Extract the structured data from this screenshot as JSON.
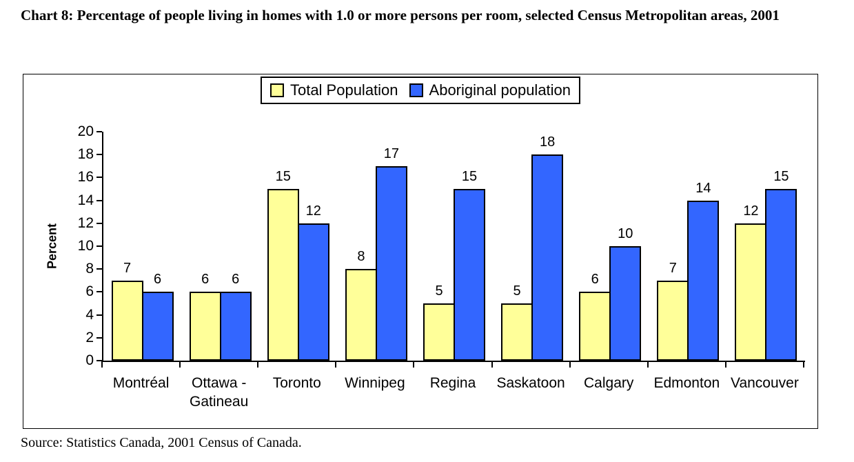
{
  "page": {
    "title": "Chart 8: Percentage of people living in homes with 1.0 or more persons per room, selected Census Metropolitan areas, 2001",
    "source": "Source: Statistics Canada, 2001 Census of Canada."
  },
  "chart_data": {
    "type": "bar",
    "title": "Chart 8: Percentage of people living in homes with 1.0 or more persons per room, selected Census Metropolitan areas, 2001",
    "categories": [
      "Montréal",
      "Ottawa - Gatineau",
      "Toronto",
      "Winnipeg",
      "Regina",
      "Saskatoon",
      "Calgary",
      "Edmonton",
      "Vancouver"
    ],
    "series": [
      {
        "name": "Total Population",
        "color": "#FFFF99",
        "values": [
          7,
          6,
          15,
          8,
          5,
          5,
          6,
          7,
          12
        ]
      },
      {
        "name": "Aboriginal population",
        "color": "#3366FF",
        "values": [
          6,
          6,
          12,
          17,
          15,
          18,
          10,
          14,
          15
        ]
      }
    ],
    "xlabel": "",
    "ylabel": "Percent",
    "ylim": [
      0,
      20
    ],
    "yticks": [
      0,
      2,
      4,
      6,
      8,
      10,
      12,
      14,
      16,
      18,
      20
    ],
    "grid": false,
    "legend_position": "top-center",
    "bar_value_labels": true,
    "bar_border_color": "#000000",
    "axis_color": "#000000"
  }
}
